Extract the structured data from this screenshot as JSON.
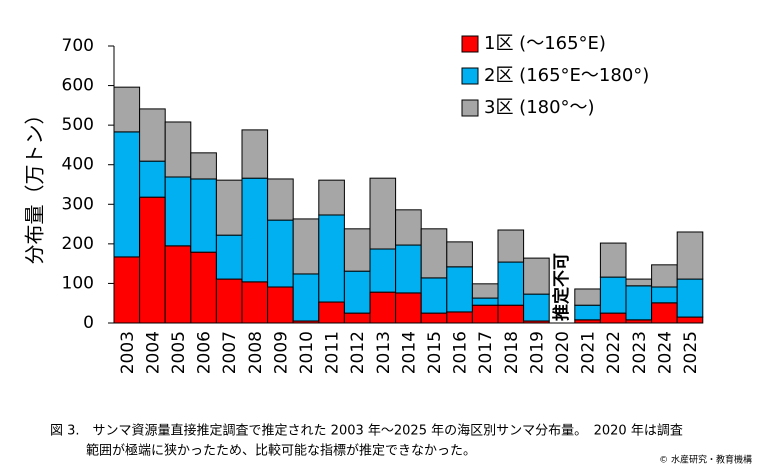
{
  "chart_data": {
    "type": "stacked_bar",
    "y_label": "分布量（万トン）",
    "categories": [
      "2003",
      "2004",
      "2005",
      "2006",
      "2007",
      "2008",
      "2009",
      "2010",
      "2011",
      "2012",
      "2013",
      "2014",
      "2015",
      "2016",
      "2017",
      "2018",
      "2019",
      "2020",
      "2021",
      "2022",
      "2023",
      "2024",
      "2025"
    ],
    "series": [
      {
        "name": "1区 (〜165°E)",
        "color": "#ff0000",
        "values": [
          167,
          318,
          195,
          179,
          111,
          104,
          91,
          5,
          53,
          25,
          78,
          76,
          25,
          28,
          45,
          45,
          5,
          null,
          8,
          25,
          8,
          51,
          15
        ]
      },
      {
        "name": "2区 (165°E〜180°)",
        "color": "#00b0f0",
        "values": [
          316,
          91,
          174,
          185,
          111,
          262,
          169,
          119,
          220,
          106,
          109,
          121,
          89,
          114,
          18,
          109,
          68,
          null,
          37,
          91,
          86,
          40,
          96
        ]
      },
      {
        "name": "3区 (180°〜)",
        "color": "#a6a6a6",
        "values": [
          113,
          132,
          139,
          66,
          139,
          122,
          104,
          139,
          88,
          107,
          179,
          89,
          124,
          63,
          36,
          81,
          91,
          null,
          41,
          86,
          17,
          56,
          119
        ]
      }
    ],
    "ylim": [
      0,
      700
    ],
    "yticks": [
      0,
      100,
      200,
      300,
      400,
      500,
      600,
      700
    ],
    "annotation": "推定不可",
    "caption": [
      "図 3.　サンマ資源量直接推定調査で推定された 2003 年〜2025 年の海区別サンマ分布量。　2020 年は調査",
      "範囲が極端に狭かったため、比較可能な指標が推定できなかった。"
    ],
    "copyright": "© 水産研究・教育機構"
  }
}
